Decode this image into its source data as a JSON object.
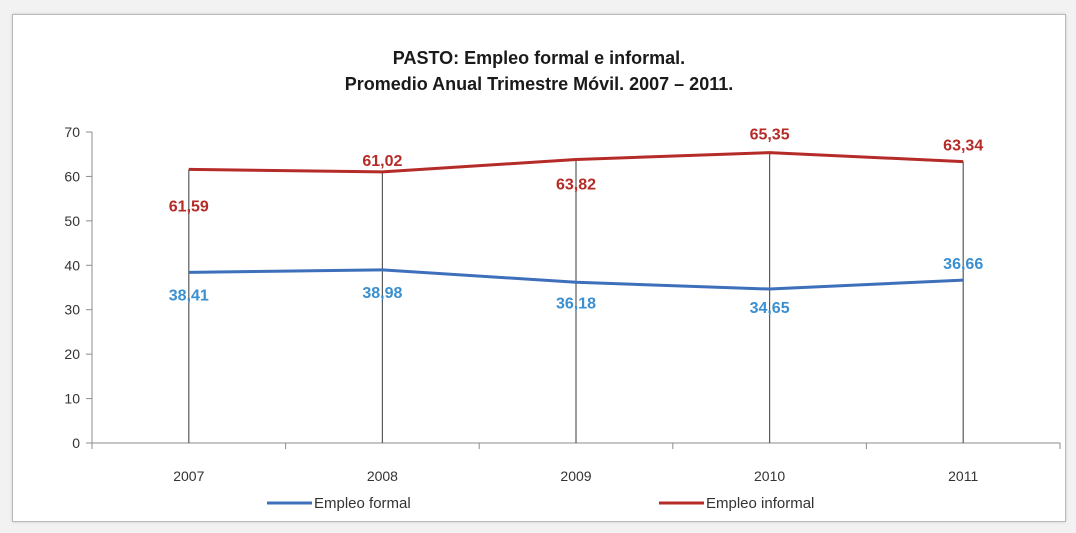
{
  "chart_data": {
    "type": "line",
    "title_line1": "PASTO: Empleo formal e informal.",
    "title_line2": "Promedio Anual Trimestre Móvil. 2007 – 2011.",
    "categories": [
      "2007",
      "2008",
      "2009",
      "2010",
      "2011"
    ],
    "ylim": [
      0,
      70
    ],
    "yticks": [
      "0",
      "10",
      "20",
      "30",
      "40",
      "50",
      "60",
      "70"
    ],
    "series": [
      {
        "name": "Empleo formal",
        "color": "#3d6fba",
        "label_color": "#3a8fd0",
        "values": [
          38.41,
          38.98,
          36.18,
          34.65,
          36.66
        ],
        "labels": [
          "38,41",
          "38,98",
          "36,18",
          "34,65",
          "36,66"
        ]
      },
      {
        "name": "Empleo informal",
        "color": "#b52b27",
        "label_color": "#b52b27",
        "values": [
          61.59,
          61.02,
          63.82,
          65.35,
          63.34
        ],
        "labels": [
          "61,59",
          "61,02",
          "63,82",
          "65,35",
          "63,34"
        ]
      }
    ],
    "grid": "vertical drop lines at each category",
    "legend_position": "bottom"
  }
}
